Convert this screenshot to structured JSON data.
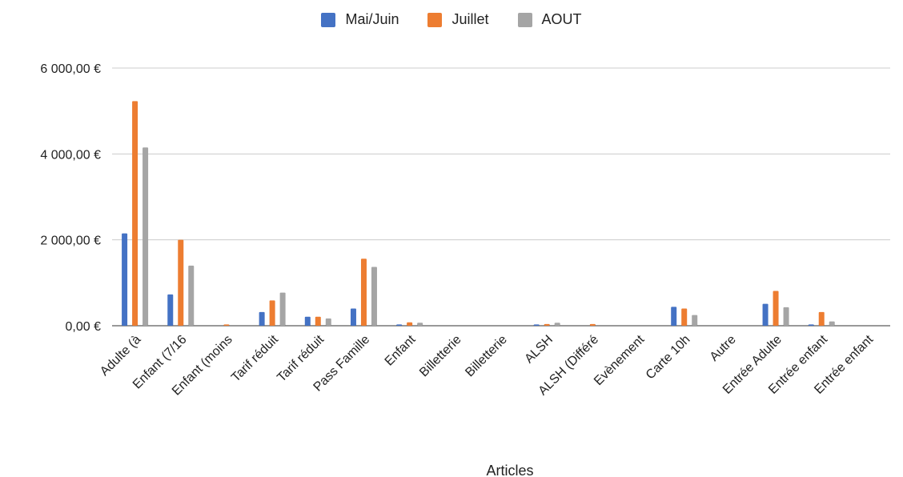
{
  "chart_data": {
    "type": "bar",
    "title": "",
    "xlabel": "Articles",
    "ylabel": "",
    "ylim": [
      0,
      6000
    ],
    "yticks": [
      0,
      2000,
      4000,
      6000
    ],
    "ytick_labels": [
      "0,00 €",
      "2 000,00 €",
      "4 000,00 €",
      "6 000,00 €"
    ],
    "grid": true,
    "legend_position": "top-center",
    "categories": [
      "Adulte (à",
      "Enfant (7/16",
      "Enfant (moins",
      "Tarif réduit",
      "Tarif réduit",
      "Pass Famille",
      "Enfant",
      "Billetterie",
      "Billetterie",
      "ALSH",
      "ALSH (Différé",
      "Evènement",
      "Carte 10h",
      "Autre",
      "Entrée Adulte",
      "Entrée enfant",
      "Entrée enfant"
    ],
    "series": [
      {
        "name": "Mai/Juin",
        "color": "#4472c4",
        "values": [
          2150,
          730,
          0,
          320,
          210,
          400,
          30,
          0,
          0,
          30,
          0,
          0,
          440,
          0,
          510,
          30,
          0
        ]
      },
      {
        "name": "Juillet",
        "color": "#ed7d31",
        "values": [
          5230,
          2000,
          30,
          590,
          210,
          1560,
          80,
          0,
          0,
          40,
          40,
          0,
          400,
          0,
          810,
          320,
          0
        ]
      },
      {
        "name": "AOUT",
        "color": "#a5a5a5",
        "values": [
          4150,
          1400,
          0,
          770,
          170,
          1370,
          70,
          0,
          0,
          70,
          0,
          0,
          250,
          0,
          430,
          100,
          0
        ]
      }
    ]
  }
}
